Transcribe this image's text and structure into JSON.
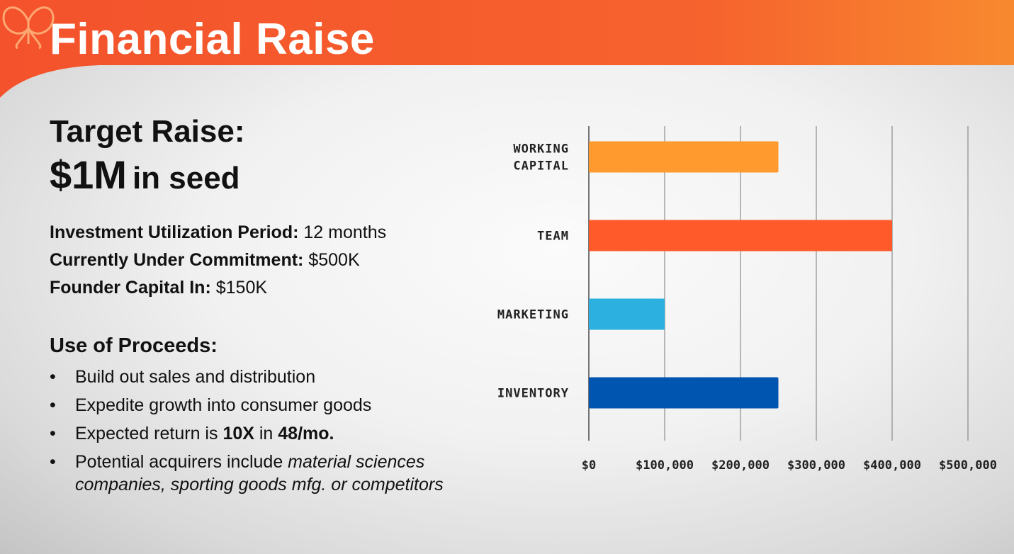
{
  "header": {
    "title": "Financial Raise",
    "accent_color": "#f5552b",
    "logo_icon": "butterfly-logo-icon"
  },
  "summary": {
    "target_label": "Target Raise:",
    "target_amount": "$1M",
    "target_suffix": "in seed",
    "facts": [
      {
        "label": "Investment Utilization Period:",
        "value": "12 months"
      },
      {
        "label": "Currently Under Commitment:",
        "value": "$500K"
      },
      {
        "label": "Founder Capital In:",
        "value": "$150K"
      }
    ]
  },
  "proceeds": {
    "heading": "Use of Proceeds:",
    "bullet_glyph": "•",
    "items": [
      {
        "text": "Build out sales and distribution"
      },
      {
        "text": "Expedite growth into consumer goods"
      },
      {
        "pre": "Expected return is ",
        "bold1": "10X",
        "mid": " in ",
        "bold2": "48/mo."
      },
      {
        "pre": "Potential acquirers include ",
        "italic": "material sciences companies, sporting goods mfg. or competitors"
      }
    ]
  },
  "chart_data": {
    "type": "bar",
    "orientation": "horizontal",
    "title": "",
    "xlabel": "",
    "ylabel": "",
    "categories": [
      [
        "WORKING",
        "CAPITAL"
      ],
      [
        "TEAM"
      ],
      [
        "MARKETING"
      ],
      [
        "INVENTORY"
      ]
    ],
    "values": [
      250000,
      400000,
      100000,
      250000
    ],
    "colors": [
      "#ff9a2e",
      "#ff5a2a",
      "#2bb0e0",
      "#0055b0"
    ],
    "xlim": [
      0,
      500000
    ],
    "ticks": [
      0,
      100000,
      200000,
      300000,
      400000,
      500000
    ],
    "tick_labels": [
      "$0",
      "$100,000",
      "$200,000",
      "$300,000",
      "$400,000",
      "$500,000"
    ],
    "grid": true,
    "legend": "none"
  }
}
